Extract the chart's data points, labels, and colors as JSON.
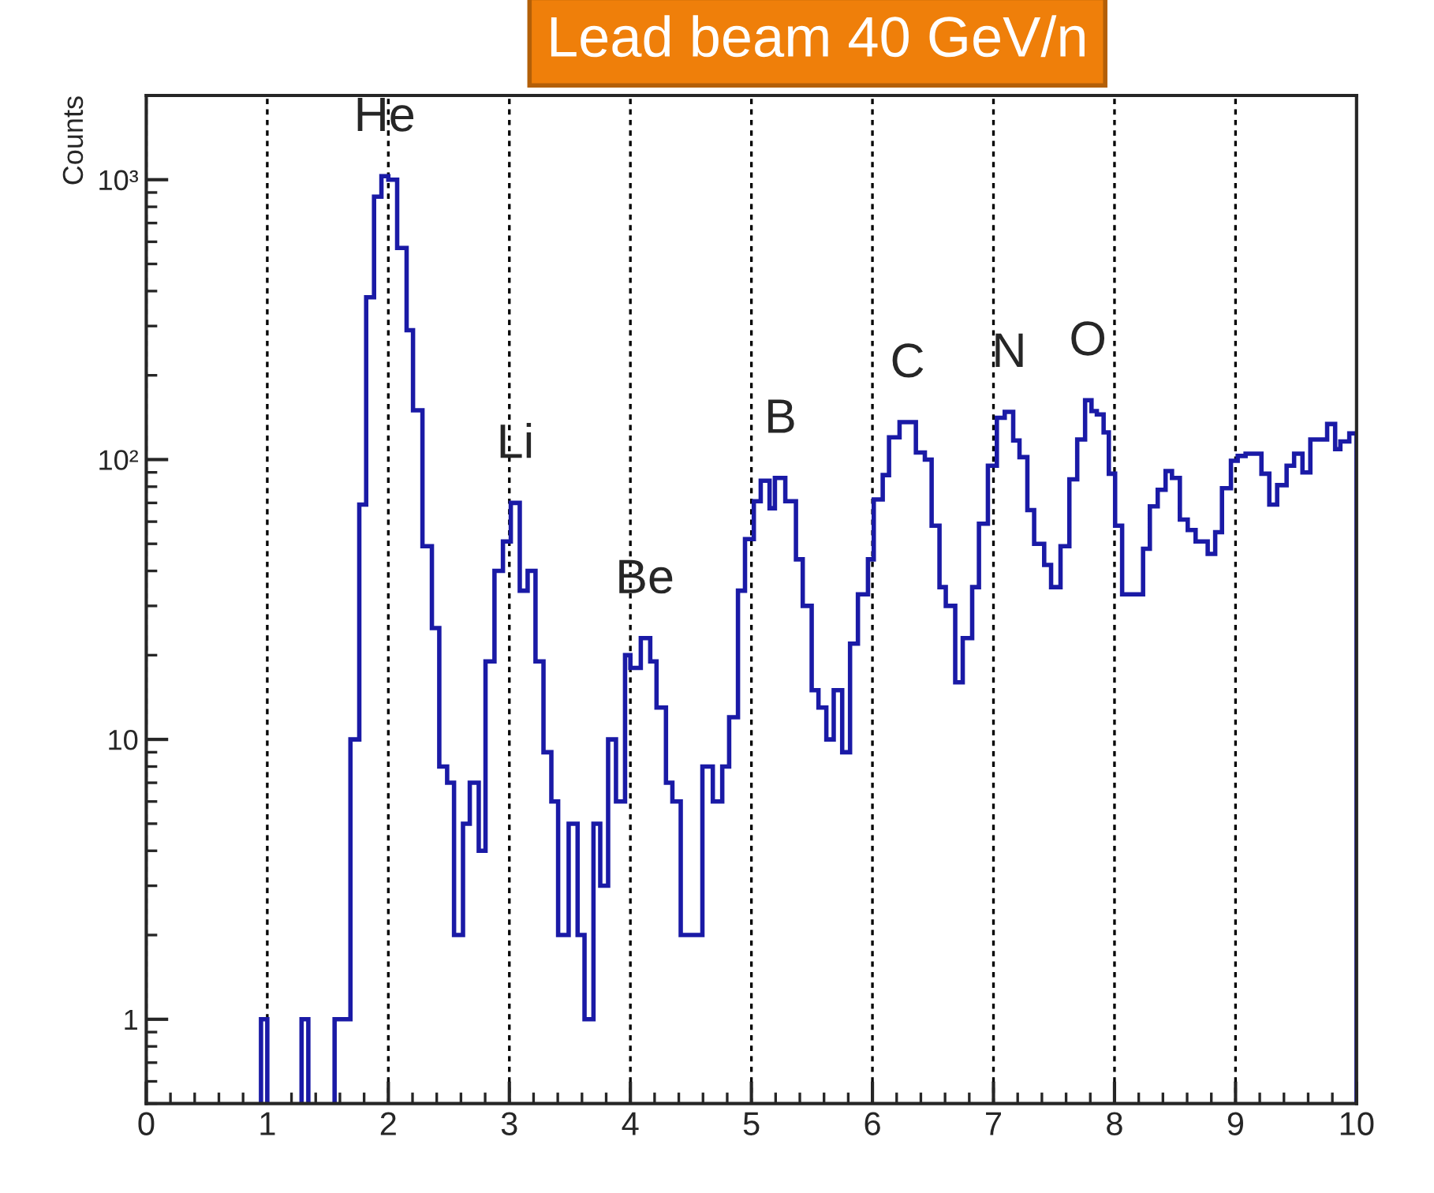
{
  "chart_data": {
    "type": "histogram",
    "title": "Lead beam 40 GeV/n",
    "ylabel": "Counts",
    "color": "#1a1aa6",
    "bins": [
      0.948,
      1.0,
      1.283,
      1.339,
      1.556,
      1.687,
      1.76,
      1.817,
      1.882,
      1.943,
      2.0,
      2.073,
      2.151,
      2.204,
      2.282,
      2.36,
      2.421,
      2.486,
      2.543,
      2.617,
      2.673,
      2.747,
      2.803,
      2.877,
      2.947,
      3.012,
      3.086,
      3.151,
      3.216,
      3.282,
      3.347,
      3.403,
      3.49,
      3.564,
      3.621,
      3.695,
      3.751,
      3.816,
      3.881,
      3.956,
      4.0,
      4.086,
      4.164,
      4.216,
      4.294,
      4.347,
      4.416,
      4.595,
      4.681,
      4.759,
      4.816,
      4.889,
      4.947,
      5.02,
      5.077,
      5.15,
      5.194,
      5.28,
      5.368,
      5.424,
      5.498,
      5.554,
      5.619,
      5.68,
      5.75,
      5.815,
      5.88,
      5.963,
      6.011,
      6.085,
      6.137,
      6.224,
      6.359,
      6.433,
      6.489,
      6.554,
      6.606,
      6.684,
      6.746,
      6.824,
      6.88,
      6.954,
      7.028,
      7.093,
      7.163,
      7.215,
      7.28,
      7.336,
      7.419,
      7.476,
      7.554,
      7.627,
      7.692,
      7.757,
      7.81,
      7.854,
      7.91,
      7.953,
      8.005,
      8.063,
      8.236,
      8.292,
      8.357,
      8.422,
      8.475,
      8.54,
      8.605,
      8.67,
      8.77,
      8.832,
      8.888,
      8.962,
      9.018,
      9.083,
      9.214,
      9.279,
      9.344,
      9.422,
      9.484,
      9.553,
      9.618,
      9.757,
      9.823,
      9.866,
      9.94,
      10.0
    ],
    "values": [
      1,
      null,
      1,
      null,
      1,
      10,
      69,
      380,
      870,
      1030,
      1000,
      570,
      290,
      150,
      49,
      25,
      8,
      7,
      2,
      5,
      7,
      4,
      19,
      40,
      51,
      70,
      34,
      40,
      19,
      9,
      6,
      2,
      5,
      2,
      1,
      5,
      3,
      10,
      6,
      20,
      18,
      23,
      19,
      13,
      7,
      6,
      2,
      8,
      6,
      8,
      12,
      34,
      52,
      71,
      84,
      67,
      86,
      71,
      44,
      30,
      15,
      13,
      10,
      15,
      9,
      22,
      33,
      44,
      72,
      88,
      120,
      136,
      106,
      100,
      58,
      35,
      30,
      16,
      23,
      35,
      59,
      95,
      141,
      148,
      117,
      102,
      66,
      50,
      42,
      35,
      49,
      85,
      118,
      163,
      149,
      145,
      125,
      89,
      58,
      33,
      48,
      68,
      78,
      91,
      86,
      61,
      56,
      51,
      46,
      55,
      79,
      99,
      103,
      105,
      89,
      69,
      81,
      95,
      105,
      90,
      118,
      134,
      109,
      116,
      124
    ],
    "log": "y",
    "xlim": [
      0,
      10
    ],
    "ylim": [
      0.5,
      2000
    ],
    "xticks": [
      0,
      1,
      2,
      3,
      4,
      5,
      6,
      7,
      8,
      9,
      10
    ],
    "yticks": [
      1,
      10,
      {
        "value": 100,
        "label": "10²"
      },
      {
        "value": 1000,
        "label": "10³"
      }
    ],
    "grid": "x",
    "annotations": [
      {
        "text": "He",
        "x": 1.97,
        "y": 1030
      },
      {
        "text": "Li",
        "x": 3.05,
        "y": 70
      },
      {
        "text": "Be",
        "x": 4.12,
        "y": 23
      },
      {
        "text": "B",
        "x": 5.24,
        "y": 86
      },
      {
        "text": "C",
        "x": 6.29,
        "y": 136
      },
      {
        "text": "N",
        "x": 7.13,
        "y": 148
      },
      {
        "text": "O",
        "x": 7.78,
        "y": 163
      }
    ]
  }
}
